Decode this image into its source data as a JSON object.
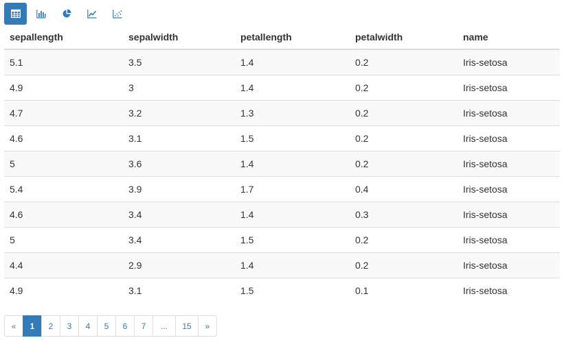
{
  "colors": {
    "accent": "#337ab7",
    "stripe": "#f9f9f9",
    "border": "#dddddd",
    "text": "#333333"
  },
  "toolbar": {
    "buttons": [
      {
        "icon": "table-icon",
        "active": true
      },
      {
        "icon": "bar-chart-icon",
        "active": false
      },
      {
        "icon": "pie-chart-icon",
        "active": false
      },
      {
        "icon": "line-chart-icon",
        "active": false
      },
      {
        "icon": "scatter-chart-icon",
        "active": false
      }
    ]
  },
  "table": {
    "headers": [
      "sepallength",
      "sepalwidth",
      "petallength",
      "petalwidth",
      "name"
    ],
    "rows": [
      [
        "5.1",
        "3.5",
        "1.4",
        "0.2",
        "Iris-setosa"
      ],
      [
        "4.9",
        "3",
        "1.4",
        "0.2",
        "Iris-setosa"
      ],
      [
        "4.7",
        "3.2",
        "1.3",
        "0.2",
        "Iris-setosa"
      ],
      [
        "4.6",
        "3.1",
        "1.5",
        "0.2",
        "Iris-setosa"
      ],
      [
        "5",
        "3.6",
        "1.4",
        "0.2",
        "Iris-setosa"
      ],
      [
        "5.4",
        "3.9",
        "1.7",
        "0.4",
        "Iris-setosa"
      ],
      [
        "4.6",
        "3.4",
        "1.4",
        "0.3",
        "Iris-setosa"
      ],
      [
        "5",
        "3.4",
        "1.5",
        "0.2",
        "Iris-setosa"
      ],
      [
        "4.4",
        "2.9",
        "1.4",
        "0.2",
        "Iris-setosa"
      ],
      [
        "4.9",
        "3.1",
        "1.5",
        "0.1",
        "Iris-setosa"
      ]
    ]
  },
  "pagination": {
    "prev": "«",
    "next": "»",
    "pages": [
      "1",
      "2",
      "3",
      "4",
      "5",
      "6",
      "7",
      "...",
      "15"
    ],
    "current": "1"
  }
}
